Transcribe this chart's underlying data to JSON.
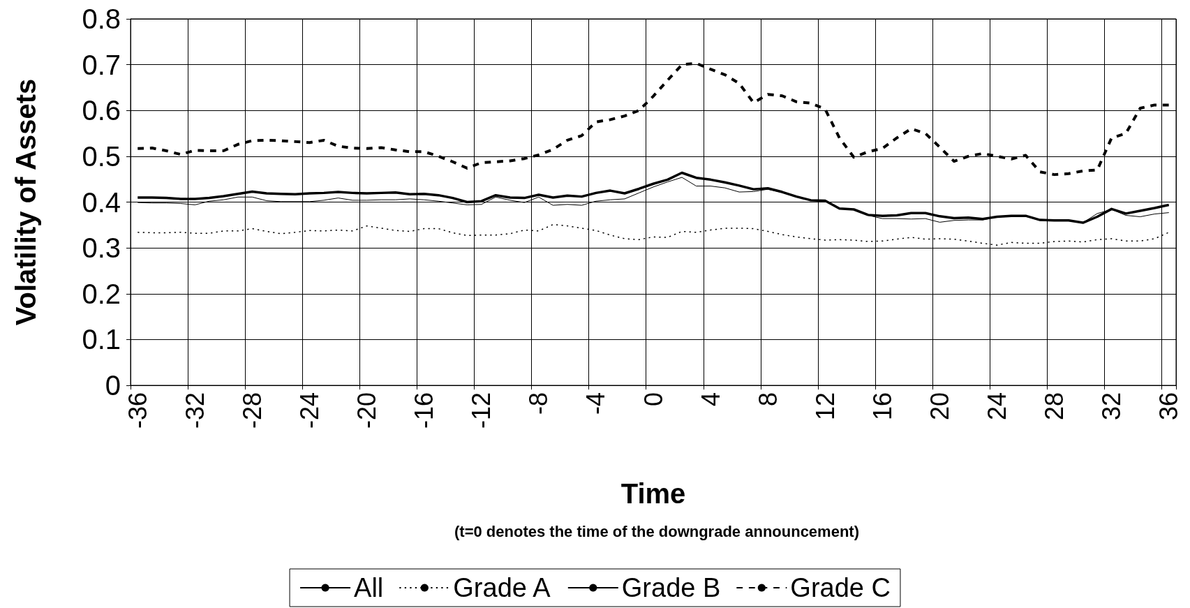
{
  "chart_data": {
    "type": "line",
    "xlabel": "Time",
    "ylabel": "Volatility of Assets",
    "annotations": [
      "(t=0 denotes the time of the downgrade announcement)"
    ],
    "categories": [
      "-36",
      null,
      null,
      null,
      "-32",
      null,
      null,
      null,
      "-28",
      null,
      null,
      null,
      "-24",
      null,
      null,
      null,
      "-20",
      null,
      null,
      null,
      "-16",
      null,
      null,
      null,
      "-12",
      null,
      null,
      null,
      "-8",
      null,
      null,
      null,
      "-4",
      null,
      null,
      null,
      "0",
      null,
      null,
      null,
      "4",
      null,
      null,
      null,
      "8",
      null,
      null,
      null,
      "12",
      null,
      null,
      null,
      "16",
      null,
      null,
      null,
      "20",
      null,
      null,
      null,
      "24",
      null,
      null,
      null,
      "28",
      null,
      null,
      null,
      "32",
      null,
      null,
      null,
      "36"
    ],
    "series": [
      {
        "name": "All",
        "color": "#000000",
        "line_style": "solid",
        "values": [
          0.41,
          0.41,
          0.409,
          0.407,
          0.407,
          0.409,
          0.413,
          0.418,
          0.423,
          0.419,
          0.418,
          0.417,
          0.419,
          0.42,
          0.422,
          0.42,
          0.419,
          0.42,
          0.421,
          0.417,
          0.418,
          0.415,
          0.409,
          0.4,
          0.402,
          0.415,
          0.41,
          0.409,
          0.416,
          0.41,
          0.414,
          0.412,
          0.42,
          0.425,
          0.419,
          0.429,
          0.44,
          0.449,
          0.464,
          0.453,
          0.449,
          0.443,
          0.436,
          0.428,
          0.43,
          0.422,
          0.412,
          0.404,
          0.403,
          0.386,
          0.384,
          0.372,
          0.37,
          0.371,
          0.376,
          0.376,
          0.369,
          0.365,
          0.366,
          0.363,
          0.368,
          0.37,
          0.37,
          0.361,
          0.36,
          0.36,
          0.355,
          0.368,
          0.385,
          0.375,
          0.381,
          0.387,
          0.394
        ]
      },
      {
        "name": "Grade A",
        "color": "#000000",
        "line_style": "dotted",
        "values": [
          0.334,
          0.333,
          0.333,
          0.334,
          0.332,
          0.332,
          0.337,
          0.337,
          0.342,
          0.336,
          0.331,
          0.334,
          0.338,
          0.337,
          0.339,
          0.337,
          0.348,
          0.343,
          0.338,
          0.336,
          0.342,
          0.342,
          0.333,
          0.327,
          0.328,
          0.328,
          0.331,
          0.339,
          0.337,
          0.351,
          0.348,
          0.343,
          0.338,
          0.328,
          0.32,
          0.318,
          0.324,
          0.323,
          0.336,
          0.334,
          0.339,
          0.343,
          0.343,
          0.342,
          0.336,
          0.329,
          0.324,
          0.32,
          0.317,
          0.318,
          0.317,
          0.314,
          0.315,
          0.319,
          0.323,
          0.319,
          0.32,
          0.319,
          0.315,
          0.31,
          0.306,
          0.312,
          0.31,
          0.31,
          0.314,
          0.315,
          0.313,
          0.318,
          0.32,
          0.315,
          0.315,
          0.32,
          0.334
        ]
      },
      {
        "name": "Grade B",
        "color": "#000000",
        "line_style": "solid",
        "values": [
          0.399,
          0.398,
          0.398,
          0.397,
          0.394,
          0.402,
          0.405,
          0.411,
          0.411,
          0.403,
          0.401,
          0.401,
          0.401,
          0.404,
          0.409,
          0.404,
          0.404,
          0.405,
          0.405,
          0.407,
          0.405,
          0.402,
          0.398,
          0.394,
          0.395,
          0.411,
          0.404,
          0.399,
          0.411,
          0.393,
          0.395,
          0.393,
          0.402,
          0.405,
          0.407,
          0.42,
          0.433,
          0.444,
          0.454,
          0.435,
          0.435,
          0.431,
          0.422,
          0.423,
          0.428,
          0.421,
          0.411,
          0.404,
          0.403,
          0.386,
          0.384,
          0.371,
          0.364,
          0.364,
          0.363,
          0.364,
          0.356,
          0.36,
          0.361,
          0.361,
          0.368,
          0.369,
          0.369,
          0.36,
          0.36,
          0.36,
          0.355,
          0.375,
          0.384,
          0.371,
          0.368,
          0.374,
          0.377
        ]
      },
      {
        "name": "Grade C",
        "color": "#000000",
        "line_style": "dashed",
        "values": [
          0.517,
          0.518,
          0.512,
          0.504,
          0.513,
          0.512,
          0.512,
          0.526,
          0.534,
          0.535,
          0.534,
          0.532,
          0.53,
          0.535,
          0.522,
          0.518,
          0.517,
          0.519,
          0.514,
          0.51,
          0.51,
          0.5,
          0.488,
          0.474,
          0.486,
          0.488,
          0.49,
          0.495,
          0.503,
          0.515,
          0.535,
          0.545,
          0.575,
          0.58,
          0.588,
          0.6,
          0.631,
          0.666,
          0.7,
          0.703,
          0.69,
          0.678,
          0.659,
          0.617,
          0.635,
          0.632,
          0.619,
          0.616,
          0.603,
          0.54,
          0.498,
          0.51,
          0.517,
          0.54,
          0.56,
          0.55,
          0.52,
          0.489,
          0.5,
          0.506,
          0.5,
          0.494,
          0.502,
          0.466,
          0.46,
          0.462,
          0.468,
          0.47,
          0.54,
          0.55,
          0.605,
          0.612,
          0.612
        ]
      }
    ],
    "ylim": [
      0,
      0.8
    ],
    "yticks": [
      0,
      0.1,
      0.2,
      0.3,
      0.4,
      0.5,
      0.6,
      0.7,
      0.8
    ],
    "grid": true,
    "legend": "bottom",
    "marker": "none"
  }
}
